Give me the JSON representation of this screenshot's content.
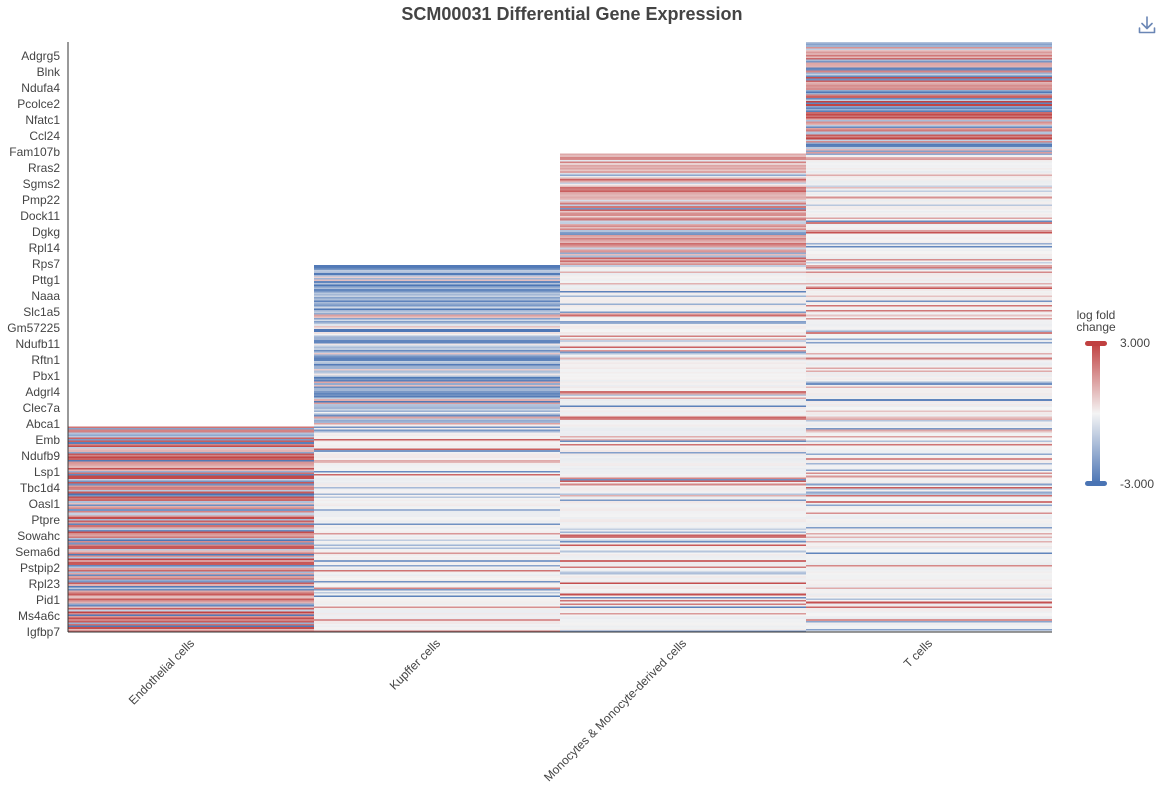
{
  "toolbar": {
    "download_icon": "download-icon"
  },
  "chart_data": {
    "type": "heatmap",
    "title": "SCM00031 Differential Gene Expression",
    "xlabel": "",
    "ylabel": "",
    "columns": [
      "Endothelial cells",
      "Kupffer cells",
      "Monocytes & Monocyte-derived cells",
      "T cells"
    ],
    "visible_gene_labels": [
      "Adgrg5",
      "Blnk",
      "Ndufa4",
      "Pcolce2",
      "Nfatc1",
      "Ccl24",
      "Fam107b",
      "Rras2",
      "Sgms2",
      "Pmp22",
      "Dock11",
      "Dgkg",
      "Rpl14",
      "Rps7",
      "Pttg1",
      "Naaa",
      "Slc1a5",
      "Gm57225",
      "Ndufb11",
      "Rftn1",
      "Pbx1",
      "Adgrl4",
      "Clec7a",
      "Abca1",
      "Emb",
      "Ndufb9",
      "Lsp1",
      "Tbc1d4",
      "Oasl1",
      "Ptpre",
      "Sowahc",
      "Sema6d",
      "Pstpip2",
      "Rpl23",
      "Pid1",
      "Ms4a6c",
      "Igfbp7"
    ],
    "row_blocks": [
      {
        "marker_for": "T cells",
        "first_gene": "Adgrg5",
        "last_gene": "Fam107b"
      },
      {
        "marker_for": "Monocytes & Monocyte-derived cells",
        "first_gene": "Rras2",
        "last_gene": "Rps7"
      },
      {
        "marker_for": "Kupffer cells",
        "first_gene": "Pttg1",
        "last_gene": "Abca1"
      },
      {
        "marker_for": "Endothelial cells",
        "first_gene": "Emb",
        "last_gene": "Igfbp7"
      }
    ],
    "value_range": [
      -3,
      3
    ],
    "colorscale": {
      "low": "#4a74b4",
      "mid": "#f4f4f4",
      "high": "#c04040"
    },
    "legend": {
      "title_line1": "log fold",
      "title_line2": "change",
      "max_label": "3.000",
      "min_label": "-3.000",
      "position": "right"
    },
    "grid": false
  }
}
